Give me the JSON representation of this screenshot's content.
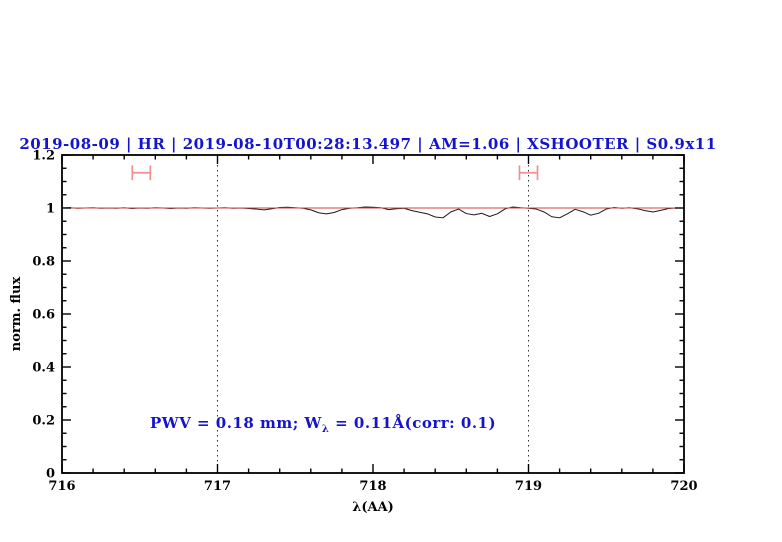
{
  "title": "2019-08-09 | HR | 2019-08-10T00:28:13.497 | AM=1.06 | XSHOOTER | S0.9x11",
  "title_color": "#1414cc",
  "annotation": {
    "pre": "PWV = 0.18 mm; W",
    "sub": "λ",
    "post": " = 0.11Å(corr: 0.1)",
    "color": "#1414cc"
  },
  "chart_data": {
    "type": "line",
    "title": "2019-08-09 | HR | 2019-08-10T00:28:13.497 | AM=1.06 | XSHOOTER | S0.9x11",
    "xlabel": "λ(AA)",
    "ylabel": "norm. flux",
    "xlim": [
      716,
      720
    ],
    "ylim": [
      0,
      1.2
    ],
    "x_major_ticks": [
      716,
      717,
      718,
      719,
      720
    ],
    "x_tick_labels": [
      "716",
      "717",
      "718",
      "719",
      "720"
    ],
    "x_minor_step": 0.2,
    "y_major_ticks": [
      0,
      0.2,
      0.4,
      0.6,
      0.8,
      1,
      1.2
    ],
    "y_tick_labels": [
      "0",
      "0.2",
      "0.4",
      "0.6",
      "0.8",
      "1",
      "1.2"
    ],
    "y_minor_step": 0.05,
    "grid": "off",
    "legend": "none",
    "frame_color": "#000000",
    "guide_color": "#333333",
    "dotted_guides_x": [
      717,
      719
    ],
    "series": [
      {
        "name": "observed-normalized-spectrum",
        "color": "#1a1a1a",
        "width": 1,
        "points": [
          [
            716.0,
            1.0
          ],
          [
            716.05,
            1.001
          ],
          [
            716.1,
            0.999
          ],
          [
            716.15,
            1.0
          ],
          [
            716.2,
            1.001
          ],
          [
            716.25,
            0.999
          ],
          [
            716.3,
            1.0
          ],
          [
            716.35,
            0.999
          ],
          [
            716.4,
            1.001
          ],
          [
            716.45,
            0.998
          ],
          [
            716.5,
            1.0
          ],
          [
            716.55,
            0.999
          ],
          [
            716.6,
            1.001
          ],
          [
            716.65,
            1.0
          ],
          [
            716.7,
            0.998
          ],
          [
            716.75,
            1.0
          ],
          [
            716.8,
            0.999
          ],
          [
            716.85,
            1.001
          ],
          [
            716.9,
            1.0
          ],
          [
            716.95,
            0.999
          ],
          [
            717.0,
            1.0
          ],
          [
            717.05,
            1.001
          ],
          [
            717.1,
            0.999
          ],
          [
            717.15,
            1.0
          ],
          [
            717.2,
            0.998
          ],
          [
            717.25,
            0.996
          ],
          [
            717.3,
            0.993
          ],
          [
            717.35,
            0.997
          ],
          [
            717.4,
            1.002
          ],
          [
            717.45,
            1.003
          ],
          [
            717.5,
            1.001
          ],
          [
            717.55,
            0.999
          ],
          [
            717.6,
            0.993
          ],
          [
            717.65,
            0.982
          ],
          [
            717.7,
            0.978
          ],
          [
            717.75,
            0.983
          ],
          [
            717.8,
            0.994
          ],
          [
            717.85,
            0.999
          ],
          [
            717.9,
            1.001
          ],
          [
            717.95,
            1.004
          ],
          [
            718.0,
            1.003
          ],
          [
            718.05,
            1.001
          ],
          [
            718.1,
            0.994
          ],
          [
            718.15,
            0.997
          ],
          [
            718.2,
            0.999
          ],
          [
            718.25,
            0.99
          ],
          [
            718.3,
            0.984
          ],
          [
            718.35,
            0.978
          ],
          [
            718.4,
            0.966
          ],
          [
            718.45,
            0.963
          ],
          [
            718.5,
            0.985
          ],
          [
            718.55,
            0.996
          ],
          [
            718.6,
            0.979
          ],
          [
            718.65,
            0.974
          ],
          [
            718.7,
            0.98
          ],
          [
            718.75,
            0.968
          ],
          [
            718.8,
            0.978
          ],
          [
            718.85,
            0.997
          ],
          [
            718.9,
            1.004
          ],
          [
            718.95,
            1.001
          ],
          [
            719.0,
            0.999
          ],
          [
            719.05,
            0.996
          ],
          [
            719.1,
            0.985
          ],
          [
            719.15,
            0.967
          ],
          [
            719.2,
            0.963
          ],
          [
            719.25,
            0.978
          ],
          [
            719.3,
            0.995
          ],
          [
            719.35,
            0.986
          ],
          [
            719.4,
            0.973
          ],
          [
            719.45,
            0.98
          ],
          [
            719.5,
            0.996
          ],
          [
            719.55,
            1.002
          ],
          [
            719.6,
            0.999
          ],
          [
            719.65,
            1.001
          ],
          [
            719.7,
            0.997
          ],
          [
            719.75,
            0.99
          ],
          [
            719.8,
            0.985
          ],
          [
            719.85,
            0.991
          ],
          [
            719.9,
            0.998
          ],
          [
            719.95,
            1.0
          ],
          [
            720.0,
            1.0
          ]
        ]
      },
      {
        "name": "continuum-reference-line",
        "color": "#d34040",
        "width": 1.1,
        "points": [
          [
            716.0,
            1.0
          ],
          [
            720.0,
            1.0
          ]
        ]
      }
    ],
    "ew_markers": [
      {
        "name": "ew-marker-716.5",
        "x_center": 716.51,
        "x_half_width": 0.058,
        "y": 1.133,
        "cap_half_height": 0.028,
        "color": "#f0908f"
      },
      {
        "name": "ew-marker-719.0",
        "x_center": 719.0,
        "x_half_width": 0.058,
        "y": 1.133,
        "cap_half_height": 0.028,
        "color": "#f0908f"
      }
    ]
  }
}
